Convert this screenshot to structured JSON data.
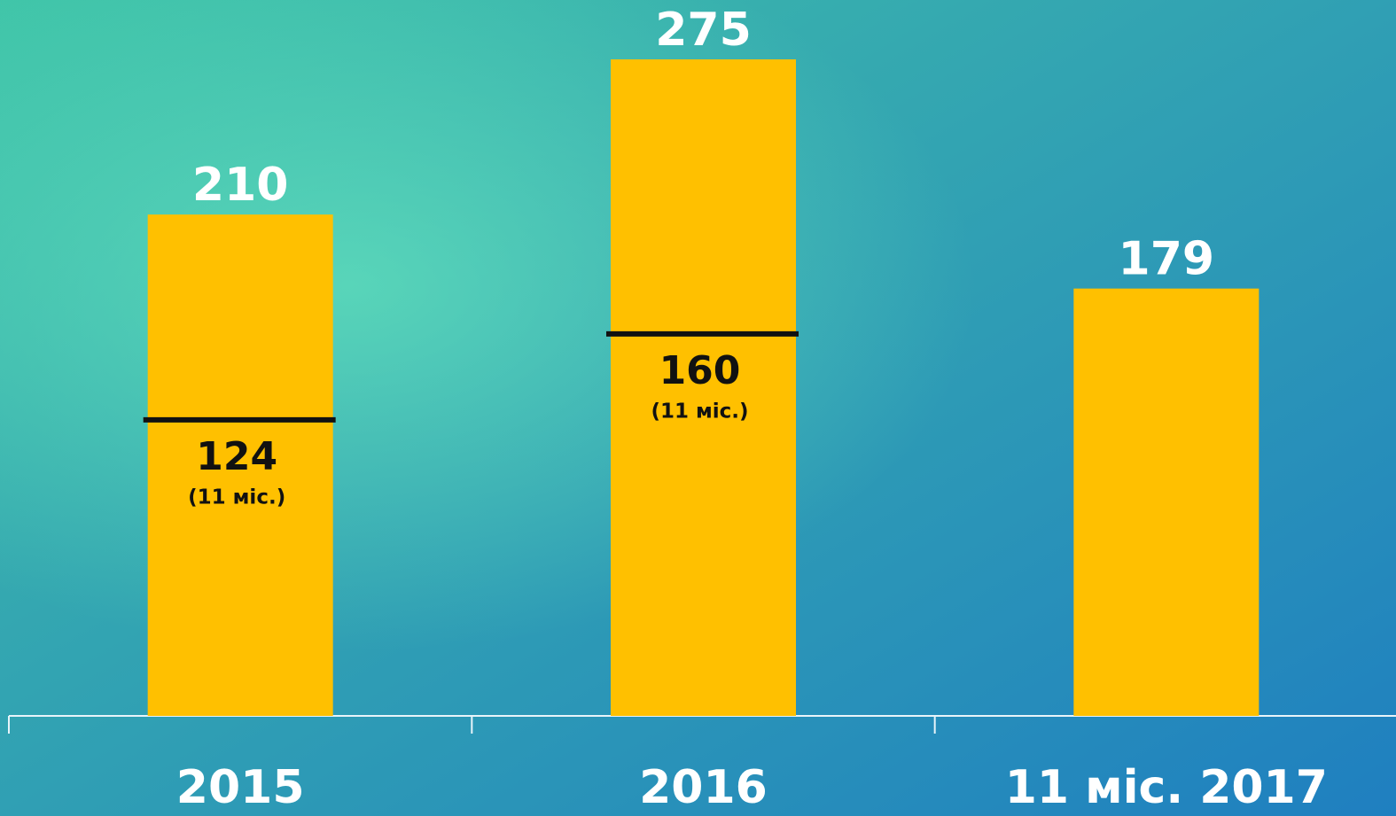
{
  "chart_data": {
    "type": "bar",
    "categories": [
      "2015",
      "2016",
      "11 міс. 2017"
    ],
    "series": [
      {
        "color": "#ffc000",
        "values": [
          210,
          275,
          179
        ]
      }
    ],
    "markers": {
      "values": [
        124,
        160,
        null
      ],
      "label": "(11 міс.)",
      "color": "#111111"
    }
  }
}
